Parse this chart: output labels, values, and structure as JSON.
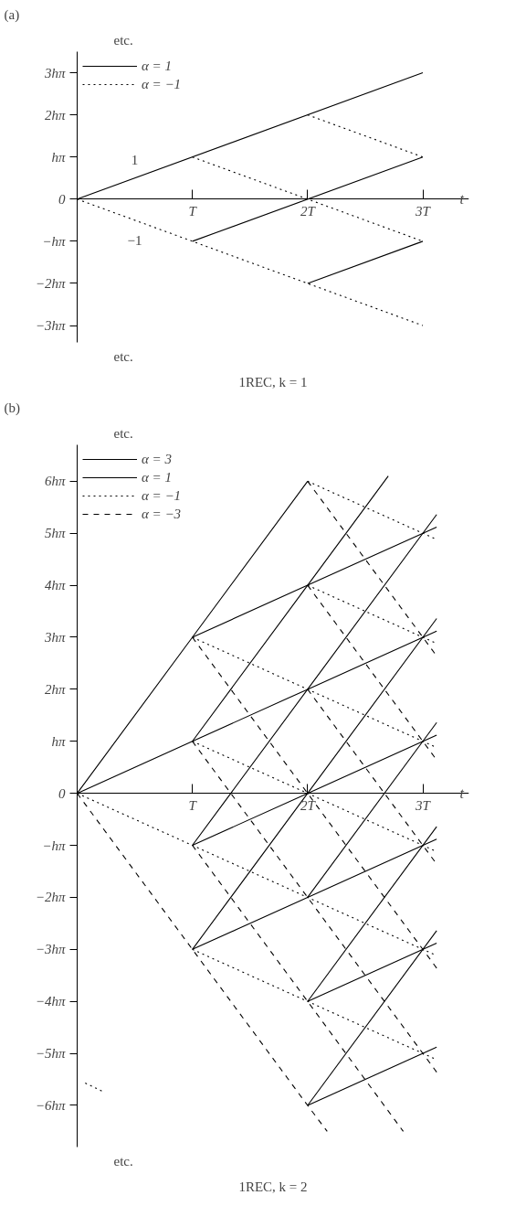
{
  "chart_data": [
    {
      "type": "line",
      "title": "(a)",
      "subtitle": "1REC, k = 1",
      "xlabel": "t",
      "annotations": [
        "etc.",
        "etc.",
        "1",
        "−1"
      ],
      "xlim": [
        0,
        3.4
      ],
      "ylim": [
        -3.4,
        3.5
      ],
      "xticks": [
        {
          "value": 1,
          "label": "T"
        },
        {
          "value": 2,
          "label": "2T"
        },
        {
          "value": 3,
          "label": "3T"
        }
      ],
      "yticks": [
        {
          "value": -3,
          "label": "−3hπ"
        },
        {
          "value": -2,
          "label": "−2hπ"
        },
        {
          "value": -1,
          "label": "−hπ"
        },
        0,
        {
          "value": 1,
          "label": "hπ"
        },
        {
          "value": 2,
          "label": "2hπ"
        },
        {
          "value": 3,
          "label": "3hπ"
        }
      ],
      "legend": "top left",
      "series": [
        {
          "name": "α = 1",
          "color": "#000000",
          "line_style": "solid",
          "x": [
            0,
            3
          ],
          "values": [
            0,
            3
          ]
        },
        {
          "name": "α = −1",
          "color": "#000000",
          "line_style": "dotted",
          "x": [
            0,
            3
          ],
          "values": [
            0,
            -3
          ]
        },
        {
          "color": "#000000",
          "line_style": "solid",
          "x": [
            1,
            3
          ],
          "values": [
            -1,
            1
          ]
        },
        {
          "color": "#000000",
          "line_style": "solid",
          "x": [
            2,
            3
          ],
          "values": [
            -2,
            -1
          ]
        },
        {
          "color": "#000000",
          "line_style": "dotted",
          "x": [
            1,
            3
          ],
          "values": [
            1,
            -1
          ]
        },
        {
          "color": "#000000",
          "line_style": "dotted",
          "x": [
            2,
            3
          ],
          "values": [
            2,
            1
          ]
        }
      ]
    },
    {
      "type": "line",
      "title": "(b)",
      "subtitle": "1REC, k = 2",
      "xlabel": "t",
      "annotations": [
        "etc.",
        "etc."
      ],
      "xlim": [
        0,
        3.4
      ],
      "ylim": [
        -6.8,
        6.7
      ],
      "xticks": [
        {
          "value": 1,
          "label": "T"
        },
        {
          "value": 2,
          "label": "2T"
        },
        {
          "value": 3,
          "label": "3T"
        }
      ],
      "yticks": [
        {
          "value": -6,
          "label": "−6hπ"
        },
        {
          "value": -5,
          "label": "−5hπ"
        },
        {
          "value": -4,
          "label": "−4hπ"
        },
        {
          "value": -3,
          "label": "−3hπ"
        },
        {
          "value": -2,
          "label": "−2hπ"
        },
        {
          "value": -1,
          "label": "−hπ"
        },
        0,
        {
          "value": 1,
          "label": "hπ"
        },
        {
          "value": 2,
          "label": "2hπ"
        },
        {
          "value": 3,
          "label": "3hπ"
        },
        {
          "value": 4,
          "label": "4hπ"
        },
        {
          "value": 5,
          "label": "5hπ"
        },
        {
          "value": 6,
          "label": "6hπ"
        }
      ],
      "legend": "top left",
      "series": [
        {
          "name": "α = 3",
          "color": "#000000",
          "line_style": "solid",
          "x": [
            0,
            1,
            2
          ],
          "values": [
            0,
            3,
            6
          ]
        },
        {
          "name": "α = 1",
          "color": "#000000",
          "line_style": "solid",
          "x": [
            0,
            1,
            2,
            3.12
          ],
          "values": [
            0,
            1,
            2,
            3.12
          ]
        },
        {
          "name": "α = −1",
          "color": "#000000",
          "line_style": "dotted",
          "x": [
            0,
            1,
            2,
            3.12
          ],
          "values": [
            0,
            -1,
            -2,
            -3.12
          ]
        },
        {
          "name": "α = −3",
          "color": "#000000",
          "line_style": "dashed",
          "x": [
            0,
            1,
            2,
            2.17
          ],
          "values": [
            0,
            -3,
            -6,
            -6.5
          ]
        },
        {
          "color": "#000000",
          "line_style": "solid",
          "x": [
            1,
            2,
            2.7
          ],
          "values": [
            1,
            4,
            6.1
          ]
        },
        {
          "color": "#000000",
          "line_style": "solid",
          "x": [
            1,
            2,
            3.12
          ],
          "values": [
            -1,
            2,
            5.36
          ]
        },
        {
          "color": "#000000",
          "line_style": "solid",
          "x": [
            1,
            2,
            3.12
          ],
          "values": [
            -3,
            0,
            3.36
          ]
        },
        {
          "color": "#000000",
          "line_style": "solid",
          "x": [
            2,
            3.12
          ],
          "values": [
            -2,
            1.36
          ]
        },
        {
          "color": "#000000",
          "line_style": "solid",
          "x": [
            2,
            3.12
          ],
          "values": [
            -4,
            -0.64
          ]
        },
        {
          "color": "#000000",
          "line_style": "solid",
          "x": [
            2,
            3.12
          ],
          "values": [
            -6,
            -2.64
          ]
        },
        {
          "color": "#000000",
          "line_style": "solid",
          "x": [
            1,
            2,
            3.12
          ],
          "values": [
            3,
            4,
            5.12
          ]
        },
        {
          "color": "#000000",
          "line_style": "solid",
          "x": [
            1,
            2,
            3.12
          ],
          "values": [
            -1,
            0,
            1.12
          ]
        },
        {
          "color": "#000000",
          "line_style": "solid",
          "x": [
            1,
            2,
            3.12
          ],
          "values": [
            -3,
            -2,
            -0.88
          ]
        },
        {
          "color": "#000000",
          "line_style": "solid",
          "x": [
            2,
            3.12
          ],
          "values": [
            -4,
            -2.88
          ]
        },
        {
          "color": "#000000",
          "line_style": "solid",
          "x": [
            2,
            3.12
          ],
          "values": [
            -6,
            -4.88
          ]
        },
        {
          "color": "#000000",
          "line_style": "dotted",
          "x": [
            1,
            2,
            3.12
          ],
          "values": [
            3,
            2,
            0.88
          ]
        },
        {
          "color": "#000000",
          "line_style": "dotted",
          "x": [
            1,
            2,
            3.12
          ],
          "values": [
            1,
            0,
            -1.12
          ]
        },
        {
          "color": "#000000",
          "line_style": "dotted",
          "x": [
            1,
            2,
            3.12
          ],
          "values": [
            -3,
            -4,
            -5.12
          ]
        },
        {
          "color": "#000000",
          "line_style": "dotted",
          "x": [
            2,
            3.12
          ],
          "values": [
            6,
            4.88
          ]
        },
        {
          "color": "#000000",
          "line_style": "dotted",
          "x": [
            2,
            3.12
          ],
          "values": [
            4,
            2.88
          ]
        },
        {
          "color": "#000000",
          "line_style": "dotted",
          "x": [
            0.07,
            0.24
          ],
          "values": [
            -5.57,
            -5.75
          ]
        },
        {
          "color": "#000000",
          "line_style": "dashed",
          "x": [
            1,
            2,
            3.12
          ],
          "values": [
            3,
            0,
            -3.36
          ]
        },
        {
          "color": "#000000",
          "line_style": "dashed",
          "x": [
            1,
            2,
            3.12
          ],
          "values": [
            1,
            -2,
            -5.36
          ]
        },
        {
          "color": "#000000",
          "line_style": "dashed",
          "x": [
            1,
            2,
            2.83
          ],
          "values": [
            -1,
            -4,
            -6.5
          ]
        },
        {
          "color": "#000000",
          "line_style": "dashed",
          "x": [
            2,
            3.12
          ],
          "values": [
            6,
            2.64
          ]
        },
        {
          "color": "#000000",
          "line_style": "dashed",
          "x": [
            2,
            3.12
          ],
          "values": [
            4,
            0.64
          ]
        },
        {
          "color": "#000000",
          "line_style": "dashed",
          "x": [
            2,
            3.12
          ],
          "values": [
            2,
            -1.36
          ]
        }
      ]
    }
  ]
}
